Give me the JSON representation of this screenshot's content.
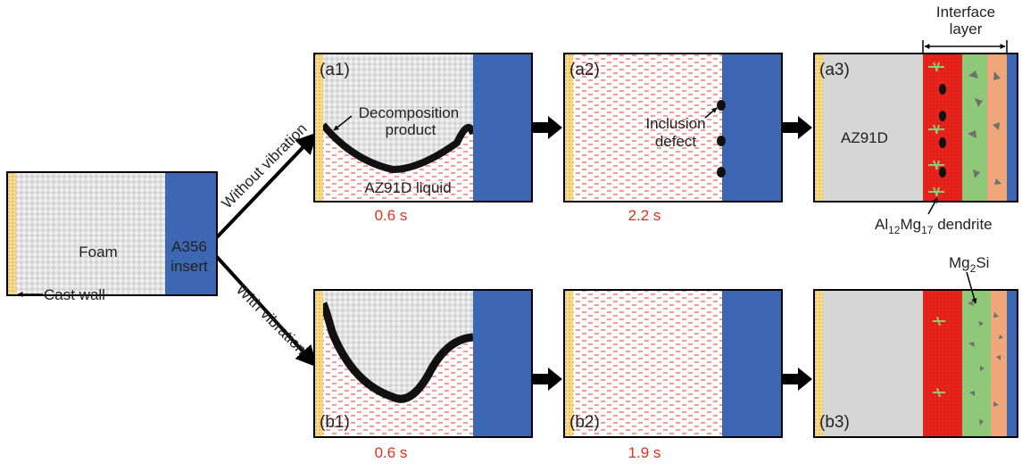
{
  "initial": {
    "foam": "Foam",
    "insert": [
      "A356",
      "insert"
    ],
    "cast_wall": "Cast wall"
  },
  "branches": {
    "top": "Without vibration",
    "bottom": "With vibration"
  },
  "panels": {
    "a1": {
      "label": "(a1)",
      "decomposition": [
        "Decomposition",
        "product"
      ],
      "liquid": "AZ91D liquid",
      "time": "0.6 s"
    },
    "a2": {
      "label": "(a2)",
      "inclusion": [
        "Inclusion",
        "defect"
      ],
      "time": "2.2 s"
    },
    "a3": {
      "label": "(a3)",
      "alloy": "AZ91D",
      "interface": [
        "Interface",
        "layer"
      ],
      "dendrite": [
        "Al",
        "12",
        "Mg",
        "17",
        " dendrite"
      ]
    },
    "b1": {
      "label": "(b1)",
      "time": "0.6 s"
    },
    "b2": {
      "label": "(b2)",
      "time": "1.9 s"
    },
    "b3": {
      "label": "(b3)",
      "mg2si": [
        "Mg",
        "2",
        "Si"
      ]
    }
  }
}
